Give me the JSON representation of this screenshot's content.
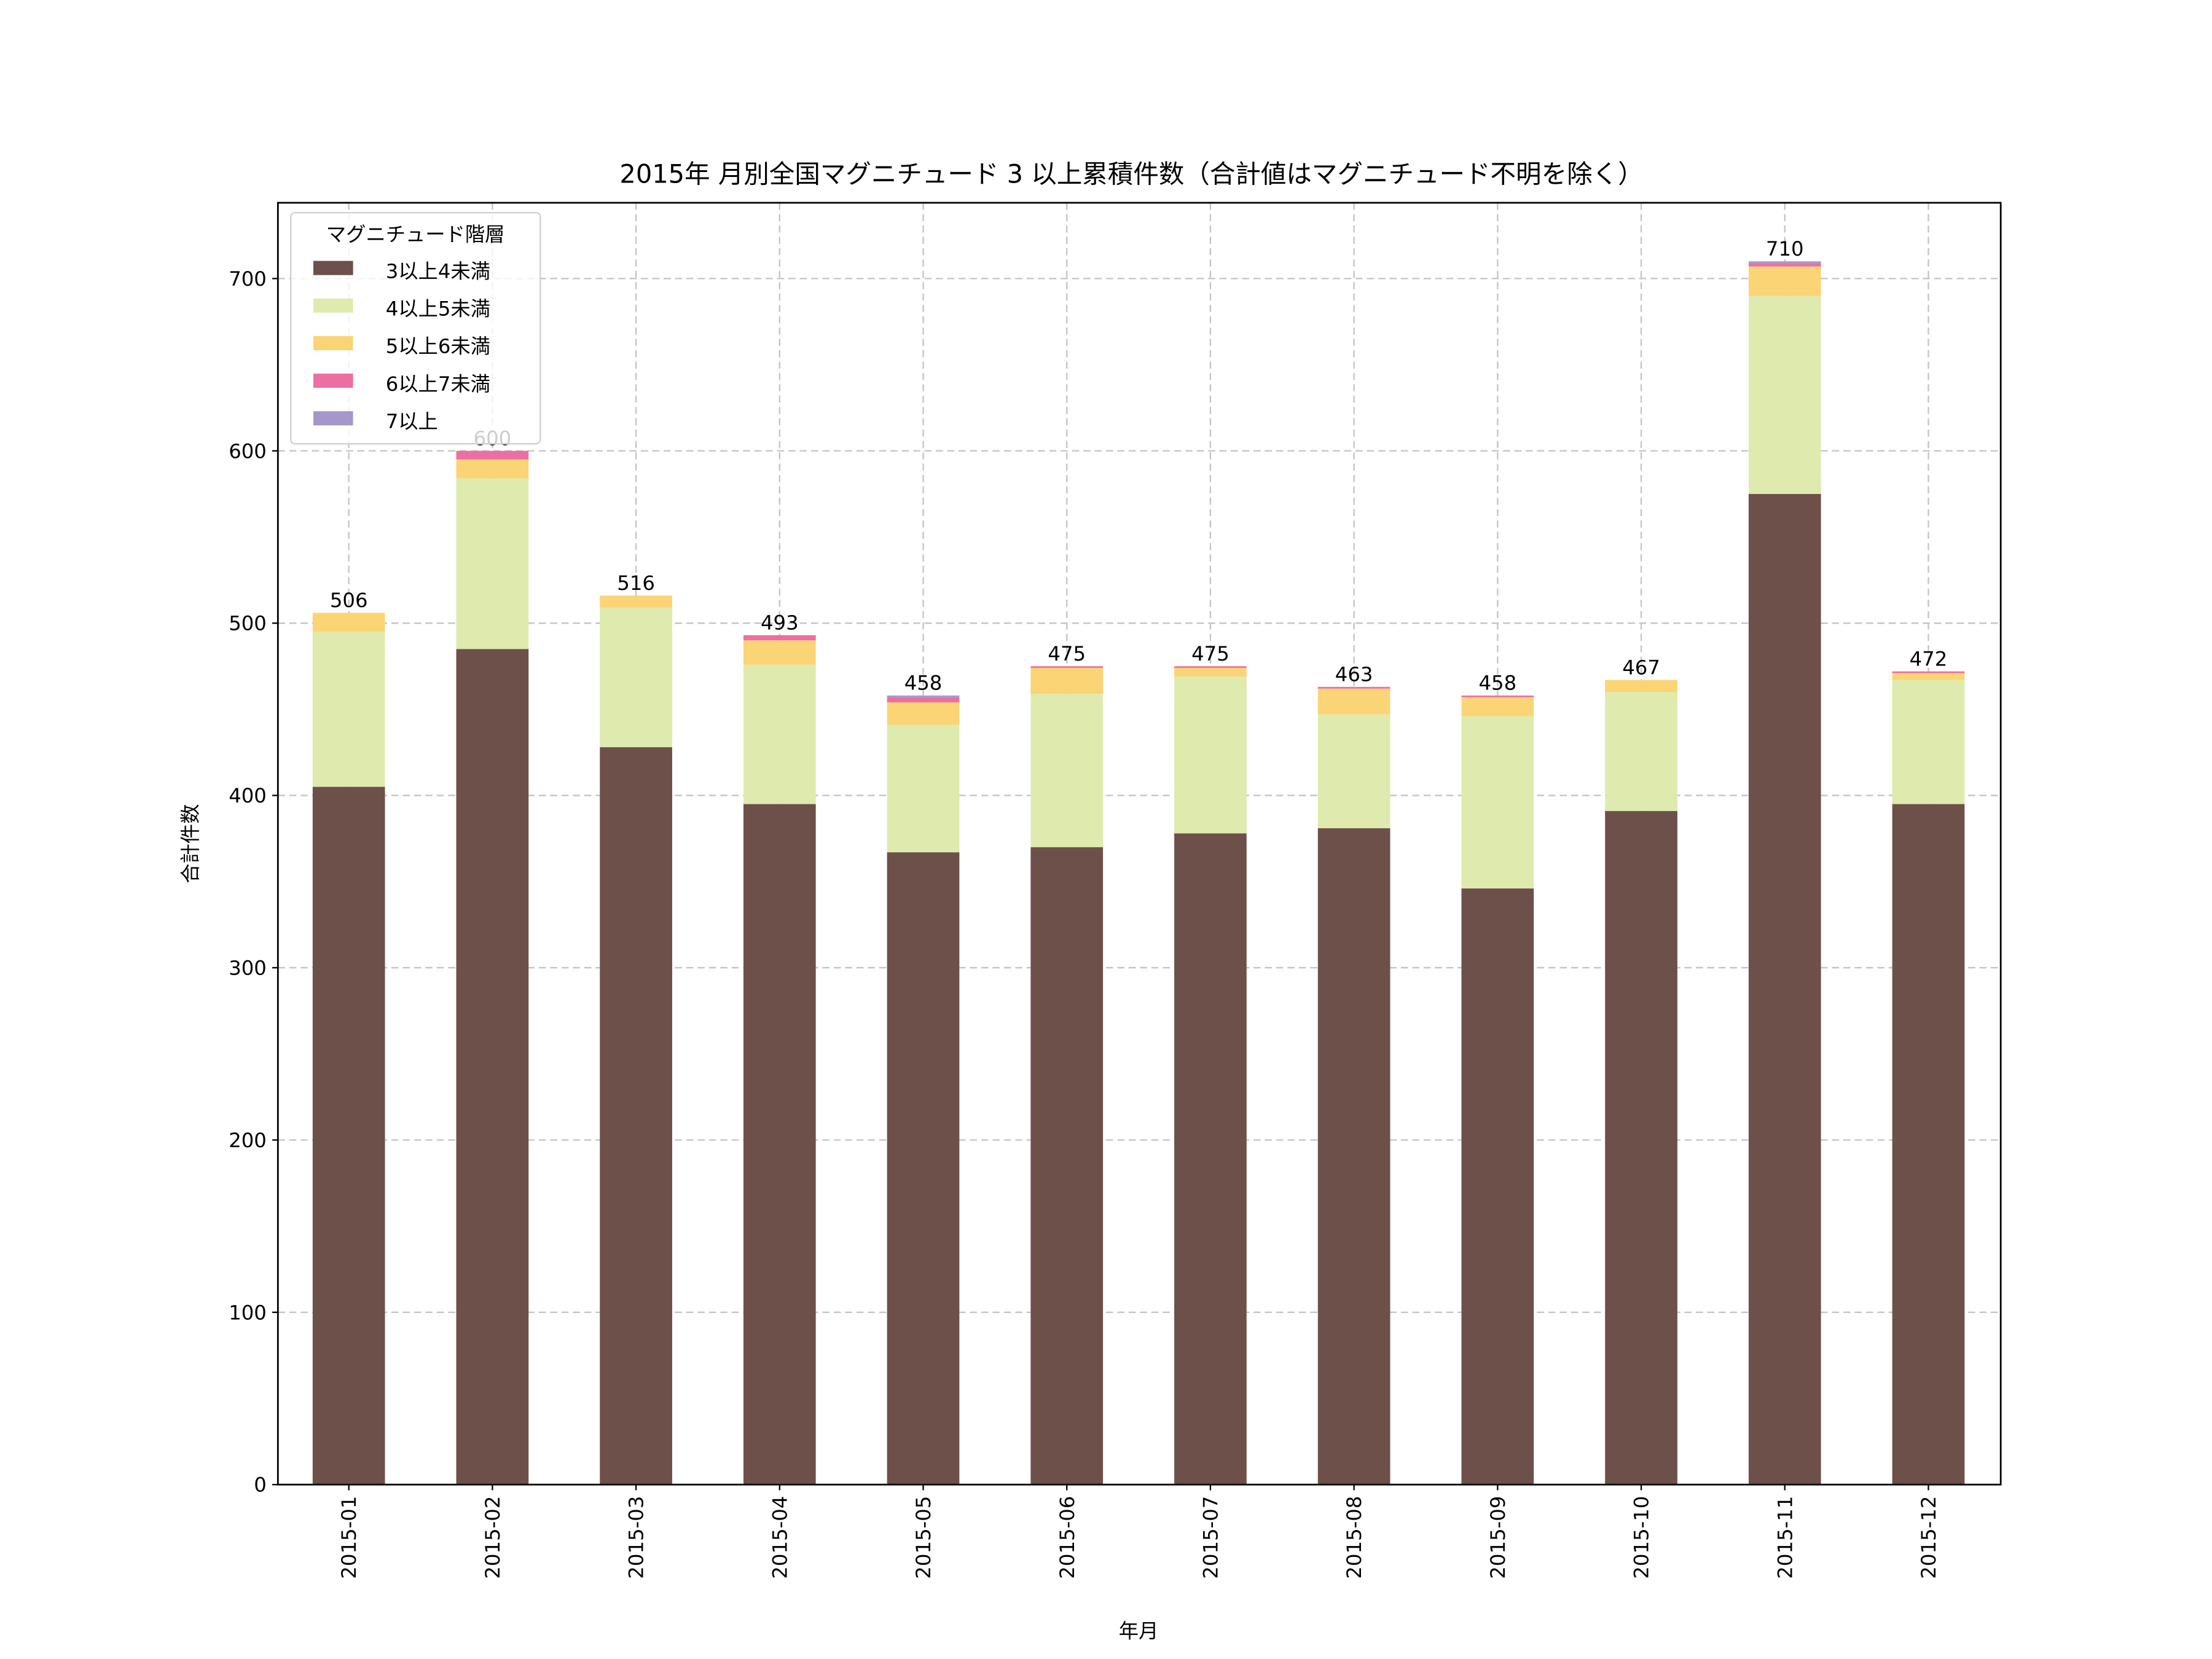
{
  "chart_data": {
    "type": "bar",
    "stacked": true,
    "title": "2015年 月別全国マグニチュード 3 以上累積件数（合計値はマグニチュード不明を除く）",
    "xlabel": "年月",
    "ylabel": "合計件数",
    "ylim": [
      0,
      744
    ],
    "yticks": [
      0,
      100,
      200,
      300,
      400,
      500,
      600,
      700
    ],
    "grid": true,
    "legend_position": "top-left",
    "legend_title": "マグニチュード階層",
    "categories": [
      "2015-01",
      "2015-02",
      "2015-03",
      "2015-04",
      "2015-05",
      "2015-06",
      "2015-07",
      "2015-08",
      "2015-09",
      "2015-10",
      "2015-11",
      "2015-12"
    ],
    "series": [
      {
        "name": "3以上4未満",
        "color": "#6d5049",
        "values": [
          405,
          485,
          428,
          395,
          367,
          370,
          378,
          381,
          346,
          391,
          575,
          395
        ]
      },
      {
        "name": "4以上5未満",
        "color": "#dfeaae",
        "values": [
          90,
          99,
          81,
          81,
          74,
          89,
          91,
          66,
          100,
          69,
          115,
          72
        ]
      },
      {
        "name": "5以上6未満",
        "color": "#fbd475",
        "values": [
          11,
          11,
          7,
          14,
          13,
          15,
          5,
          15,
          11,
          7,
          17,
          4
        ]
      },
      {
        "name": "6以上7未満",
        "color": "#ec6fa2",
        "values": [
          0,
          5,
          0,
          3,
          3,
          1,
          1,
          1,
          1,
          0,
          2,
          1
        ]
      },
      {
        "name": "7以上",
        "color": "#a597c9",
        "values": [
          0,
          0,
          0,
          0,
          1,
          0,
          0,
          0,
          0,
          0,
          1,
          0
        ]
      }
    ],
    "totals": [
      506,
      600,
      516,
      493,
      458,
      475,
      475,
      463,
      458,
      467,
      710,
      472
    ]
  }
}
